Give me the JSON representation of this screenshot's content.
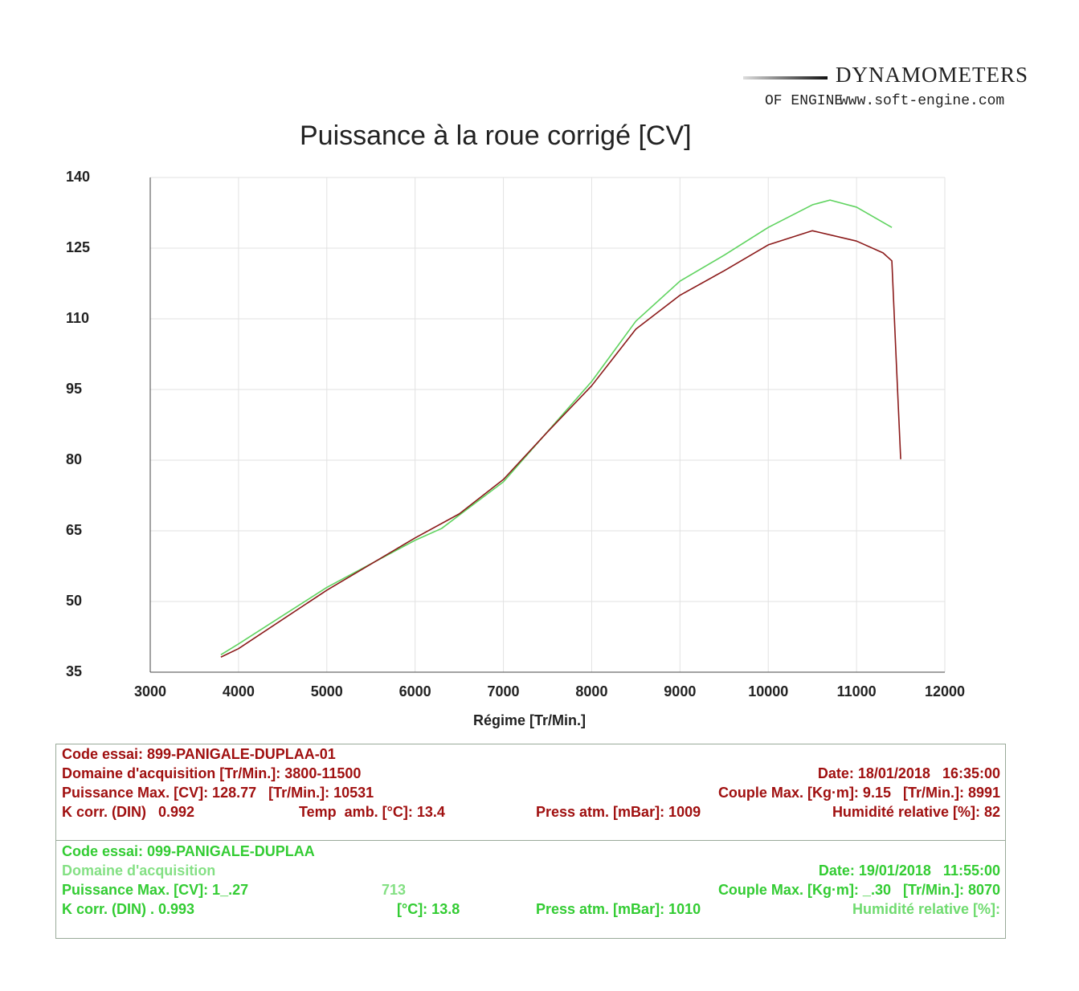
{
  "logo": {
    "brand": "DYNAMOMETERS",
    "sub": "OF ENGINE",
    "url": "www.soft-engine.com"
  },
  "chart_data": {
    "type": "line",
    "title": "Puissance à la roue corrigé [CV]",
    "xlabel": "Régime [Tr/Min.]",
    "ylabel": "",
    "xlim": [
      3000,
      12000
    ],
    "ylim": [
      35,
      140
    ],
    "xticks": [
      "3000",
      "4000",
      "5000",
      "6000",
      "7000",
      "8000",
      "9000",
      "10000",
      "11000",
      "12000"
    ],
    "yticks": [
      "140",
      "125",
      "110",
      "95",
      "80",
      "65",
      "50",
      "35"
    ],
    "grid": true,
    "series": [
      {
        "color": "#8b1a1a",
        "x": [
          3800,
          4000,
          5000,
          6000,
          6500,
          7000,
          7500,
          8000,
          8500,
          9000,
          9500,
          10000,
          10500,
          11000,
          11300,
          11400,
          11450,
          11500
        ],
        "y": [
          38.2,
          40,
          52.4,
          63.5,
          68.6,
          75.9,
          86,
          95.8,
          107.8,
          115,
          120.2,
          125.7,
          128.7,
          126.5,
          124,
          122.3,
          101,
          80.2
        ]
      },
      {
        "color": "#5fd35f",
        "x": [
          3800,
          4000,
          5000,
          6000,
          6300,
          7000,
          8000,
          8500,
          9000,
          9500,
          10000,
          10500,
          10700,
          11000,
          11400
        ],
        "y": [
          38.7,
          41,
          53,
          63,
          65.5,
          75.4,
          96.7,
          109.5,
          118,
          123.5,
          129.4,
          134.2,
          135.2,
          133.7,
          129.4
        ]
      }
    ]
  },
  "run1": {
    "code": "Code essai: 899-PANIGALE-DUPLAA-01",
    "domain": "Domaine d'acquisition [Tr/Min.]: 3800-11500",
    "date": "Date: 18/01/2018   16:35:00",
    "power": "Puissance Max. [CV]: 128.77   [Tr/Min.]: 10531",
    "torque": "Couple Max. [Kg·m]: 9.15   [Tr/Min.]: 8991",
    "kcorr": "K corr. (DIN)   0.992",
    "temp": "Temp  amb. [°C]: 13.4",
    "press": "Press atm. [mBar]: 1009",
    "hum": "Humidité relative [%]: 82"
  },
  "run2": {
    "code": "Code essai: 099-PANIGALE-DUPLAA",
    "domain": "Domaine d'acquisition",
    "date": "Date: 19/01/2018   11:55:00",
    "power": "Puissance Max. [CV]: 1_.27",
    "rpm": "713",
    "torque": "Couple Max. [Kg·m]: _.30   [Tr/Min.]: 8070",
    "kcorr": "K corr. (DIN) . 0.993",
    "temp": "[°C]: 13.8",
    "press": "Press atm. [mBar]: 1010",
    "hum": "Humidité relative [%]:"
  }
}
